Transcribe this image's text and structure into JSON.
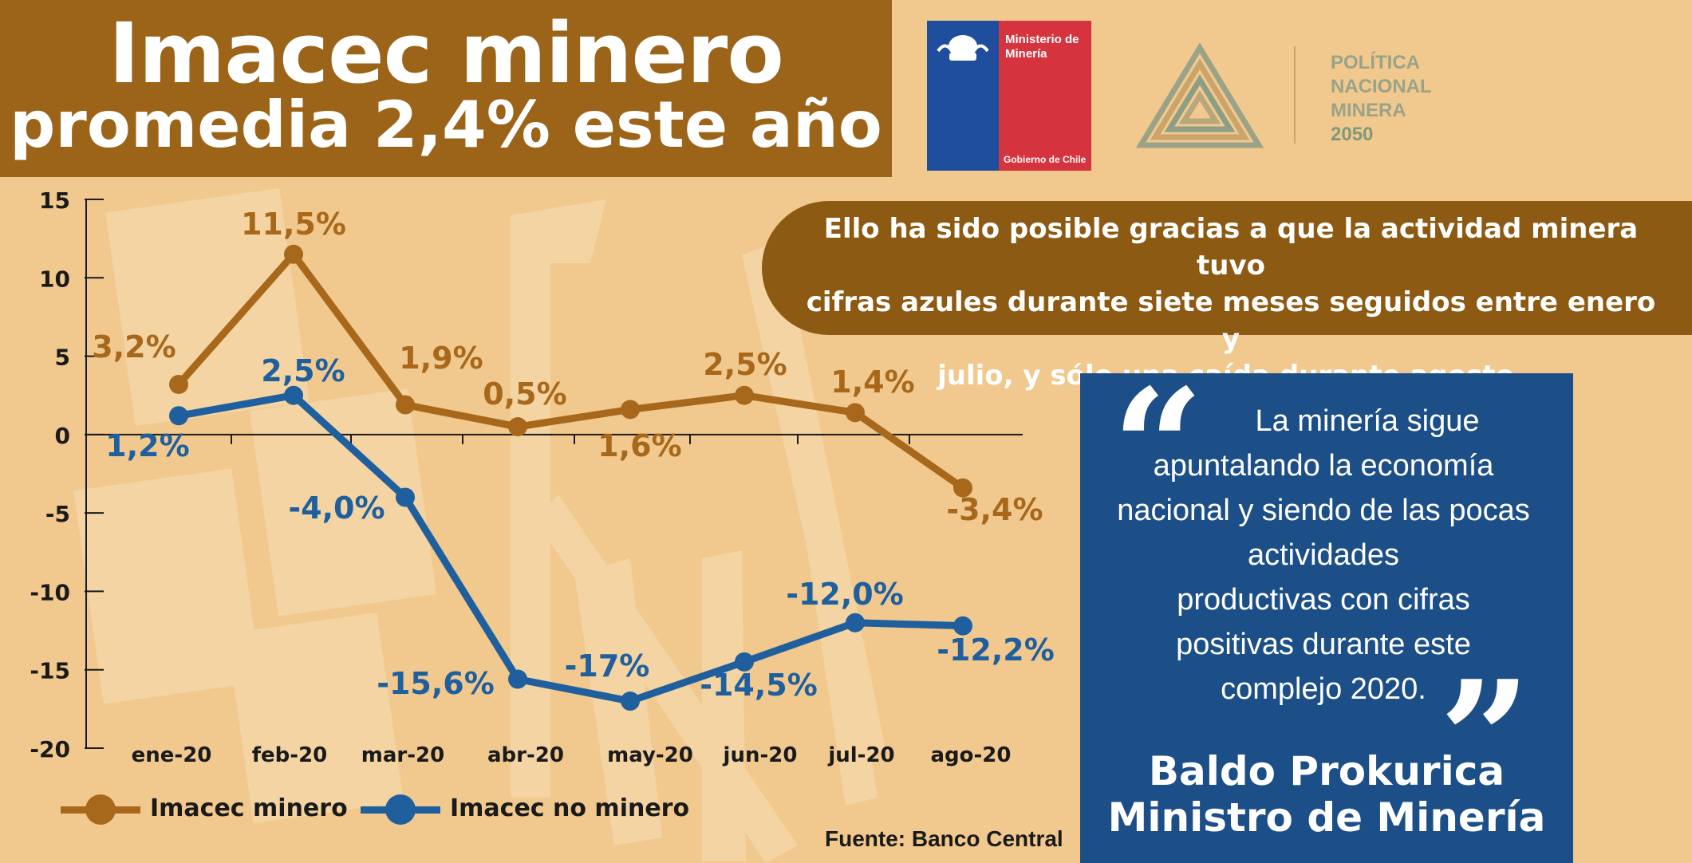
{
  "title": {
    "line1": "Imacec minero",
    "line2": "promedia 2,4% este año"
  },
  "logos": {
    "gobierno": {
      "line1": "Ministerio de",
      "line2": "Minería",
      "bottom": "Gobierno de Chile"
    },
    "politica": {
      "line1": "POLÍTICA",
      "line2": "NACIONAL",
      "line3": "MINERA",
      "line4": "2050"
    }
  },
  "info": {
    "line1": "Ello ha sido posible gracias a que la actividad minera tuvo",
    "line2": "cifras azules durante siete meses seguidos entre enero y",
    "line3": "julio, y sólo una caída durante agosto."
  },
  "quote": {
    "lines": [
      "La minería sigue",
      "apuntalando la economía",
      "nacional y siendo de las pocas",
      "actividades",
      "productivas con cifras",
      "positivas durante este",
      "complejo 2020."
    ],
    "author": "Baldo Prokurica",
    "role": "Ministro de Minería"
  },
  "source": "Fuente: Banco Central",
  "colors": {
    "minero": "#a8681b",
    "no_minero": "#1f5f9e",
    "title_bg": "#9c6418",
    "quote_bg": "#1c4f87"
  },
  "chart_data": {
    "type": "line",
    "categories": [
      "ene-20",
      "feb-20",
      "mar-20",
      "abr-20",
      "may-20",
      "jun-20",
      "jul-20",
      "ago-20"
    ],
    "ylim": [
      -20,
      15
    ],
    "yticks": [
      "15",
      "10",
      "5",
      "0",
      "-5",
      "-10",
      "-15",
      "-20"
    ],
    "series": [
      {
        "name": "Imacec minero",
        "values": [
          3.2,
          11.5,
          1.9,
          0.5,
          1.6,
          2.5,
          1.4,
          -3.4
        ],
        "labels": [
          "3,2%",
          "11,5%",
          "1,9%",
          "0,5%",
          "1,6%",
          "2,5%",
          "1,4%",
          "-3,4%"
        ]
      },
      {
        "name": "Imacec no minero",
        "values": [
          1.2,
          2.5,
          -4.0,
          -15.6,
          -17.0,
          -14.5,
          -12.0,
          -12.2
        ],
        "labels": [
          "1,2%",
          "2,5%",
          "-4,0%",
          "-15,6%",
          "-17%",
          "-14,5%",
          "-12,0%",
          "-12,2%"
        ]
      }
    ]
  }
}
